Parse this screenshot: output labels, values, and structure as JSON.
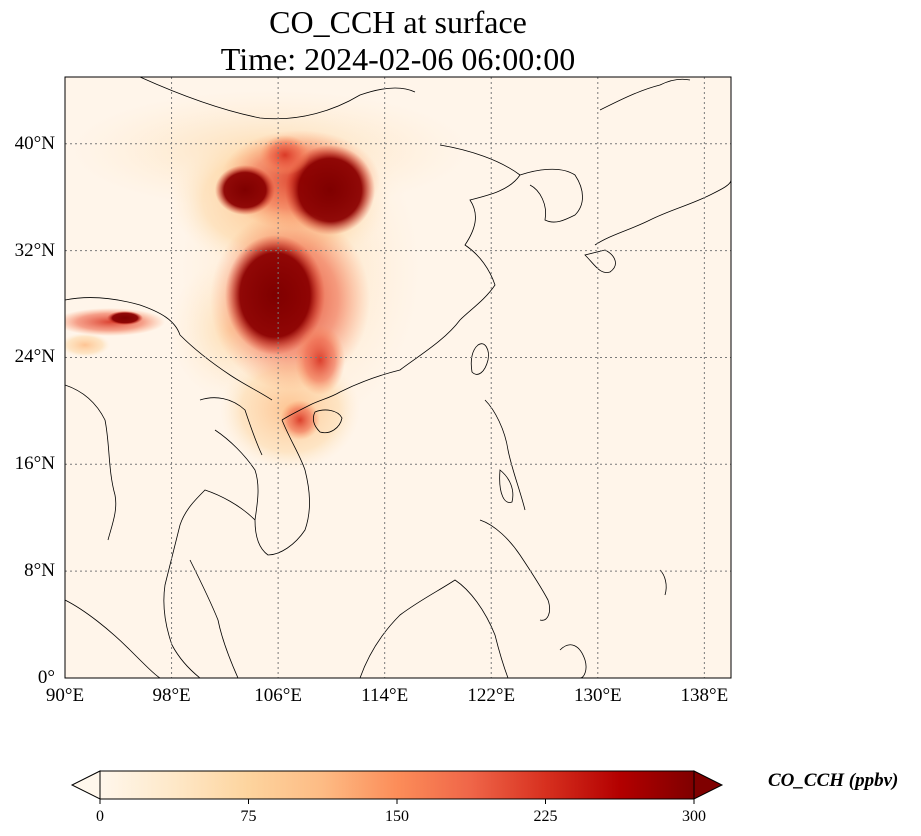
{
  "map": {
    "title_line1": "CO_CCH at surface",
    "title_line2": "Time: 2024-02-06 06:00:00",
    "extent": {
      "lon_min": 90,
      "lon_max": 140,
      "lat_min": 0,
      "lat_max": 45
    },
    "lat_ticks": [
      {
        "value": 40,
        "label": "40°N"
      },
      {
        "value": 32,
        "label": "32°N"
      },
      {
        "value": 24,
        "label": "24°N"
      },
      {
        "value": 16,
        "label": "16°N"
      },
      {
        "value": 8,
        "label": "8°N"
      },
      {
        "value": 0,
        "label": "0°"
      }
    ],
    "lon_ticks": [
      {
        "value": 90,
        "label": "90°E"
      },
      {
        "value": 98,
        "label": "98°E"
      },
      {
        "value": 106,
        "label": "106°E"
      },
      {
        "value": 114,
        "label": "114°E"
      },
      {
        "value": 122,
        "label": "122°E"
      },
      {
        "value": 130,
        "label": "130°E"
      },
      {
        "value": 138,
        "label": "138°E"
      }
    ],
    "gridlines": true,
    "field_colormap": "OrRd"
  },
  "colorbar": {
    "label": "CO_CCH (ppbv)",
    "ticks": [
      "0",
      "75",
      "150",
      "225",
      "300"
    ],
    "min": 0,
    "max": 300,
    "extend": "both",
    "colors": [
      "#fff7ec",
      "#fee8c8",
      "#fdd49e",
      "#fdbb84",
      "#fc8d59",
      "#ef6548",
      "#d7301f",
      "#b30000",
      "#7f0000"
    ]
  }
}
